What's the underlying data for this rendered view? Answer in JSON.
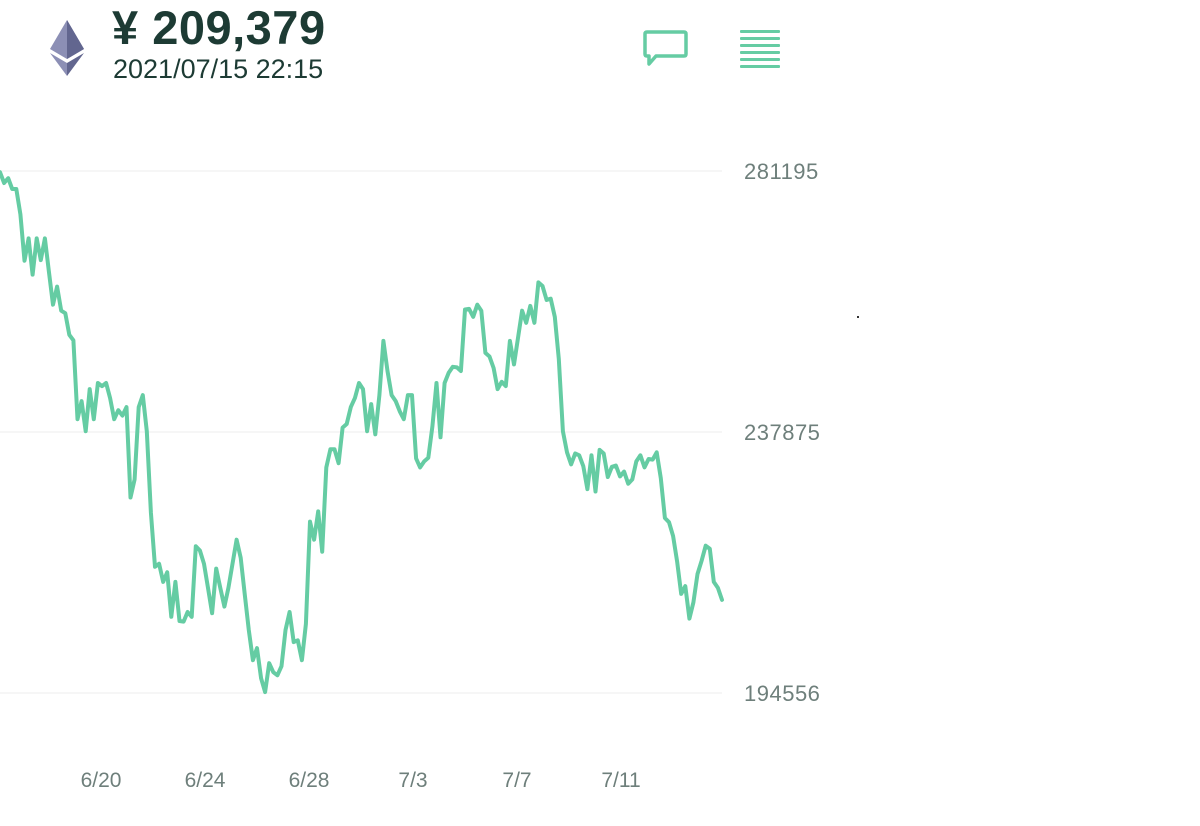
{
  "header": {
    "coin_icon": "ethereum-icon",
    "price": "¥ 209,379",
    "datetime": "2021/07/15 22:15",
    "chat_icon": "chat-bubble-icon",
    "menu_icon": "menu-list-icon"
  },
  "colors": {
    "accent": "#65cca3",
    "text_dark": "#1d3b34",
    "axis_text": "#6e7f7b",
    "gridline": "#eeeeee"
  },
  "chart_data": {
    "type": "line",
    "title": "",
    "xlabel": "",
    "ylabel": "",
    "y_ticks": [
      "281195",
      "237875",
      "194556"
    ],
    "x_ticks": [
      "6/20",
      "6/24",
      "6/28",
      "7/3",
      "7/7",
      "7/11"
    ],
    "ylim": [
      194556,
      281195
    ],
    "grid": true,
    "series": [
      {
        "values": [
          281000,
          279200,
          280000,
          278200,
          278200,
          274000,
          266300,
          270000,
          264000,
          270000,
          266400,
          270000,
          264500,
          259000,
          262000,
          258000,
          257600,
          254000,
          253100,
          240000,
          243000,
          238000,
          245000,
          240000,
          246000,
          245500,
          246000,
          243500,
          240000,
          241500,
          240600,
          242000,
          227000,
          230000,
          242000,
          244000,
          238000,
          224500,
          215500,
          216000,
          213000,
          214600,
          207200,
          213000,
          206500,
          206400,
          208000,
          207200,
          218900,
          218200,
          216000,
          212000,
          207800,
          215200,
          212000,
          208900,
          212000,
          216000,
          220000,
          217000,
          211000,
          205000,
          200000,
          202000,
          197000,
          194700,
          199500,
          198000,
          197500,
          199000,
          205000,
          208000,
          203000,
          203300,
          200000,
          206000,
          223000,
          220000,
          224700,
          218000,
          232000,
          235000,
          235000,
          232700,
          238600,
          239200,
          242000,
          243500,
          246000,
          245000,
          238000,
          242500,
          237500,
          244000,
          253000,
          248000,
          244000,
          243000,
          241300,
          240000,
          244000,
          244000,
          233500,
          232000,
          233000,
          233600,
          238800,
          246000,
          237000,
          246000,
          247700,
          248700,
          248600,
          248000,
          258200,
          258300,
          257000,
          259000,
          258000,
          251000,
          250400,
          248500,
          245000,
          246200,
          245500,
          253000,
          249100,
          253500,
          258000,
          256000,
          258800,
          256000,
          262700,
          262100,
          259800,
          260000,
          257000,
          250000,
          238000,
          234500,
          232500,
          234300,
          234000,
          232200,
          228400,
          234000,
          228000,
          234900,
          234300,
          230400,
          232100,
          232300,
          230500,
          231300,
          229300,
          230000,
          233000,
          234000,
          232000,
          233400,
          233300,
          234500,
          230200,
          223600,
          222900,
          220600,
          216400,
          211000,
          212300,
          206900,
          209600,
          214300,
          216500,
          219000,
          218500,
          213000,
          212000,
          210000
        ]
      }
    ]
  }
}
